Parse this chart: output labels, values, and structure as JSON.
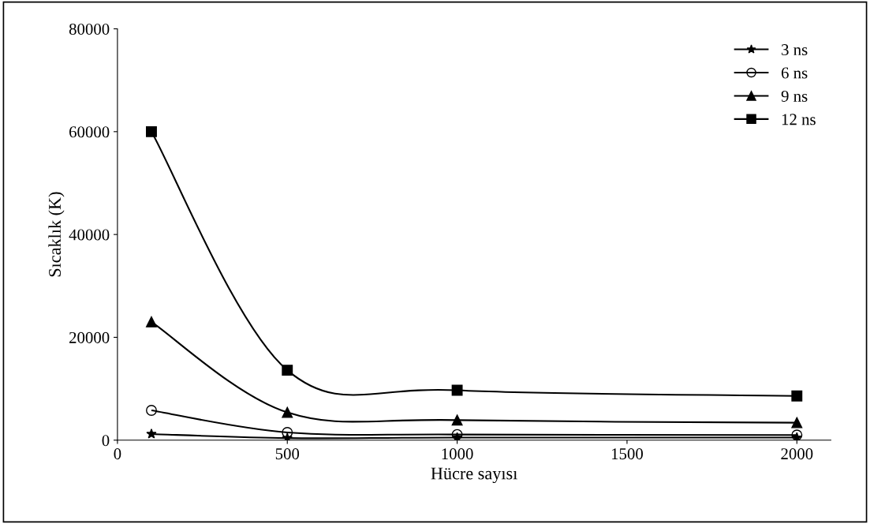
{
  "chart_data": {
    "type": "line",
    "xlabel": "Hücre sayısı",
    "ylabel": "Sıcaklık (K)",
    "x": [
      100,
      500,
      1000,
      2000
    ],
    "series": [
      {
        "name": "3 ns",
        "color": "#000000",
        "marker": "star",
        "values": [
          1200,
          400,
          500,
          500
        ]
      },
      {
        "name": "6 ns",
        "color": "#000000",
        "marker": "circle",
        "values": [
          5800,
          1500,
          1100,
          1000
        ]
      },
      {
        "name": "9 ns",
        "color": "#000000",
        "marker": "triangle",
        "values": [
          23000,
          5400,
          3900,
          3400
        ]
      },
      {
        "name": "12 ns",
        "color": "#000000",
        "marker": "square",
        "values": [
          60000,
          13600,
          9700,
          8600
        ]
      }
    ],
    "xlim": [
      0,
      2100
    ],
    "xticks": [
      0,
      500,
      1000,
      1500,
      2000
    ],
    "ylim": [
      0,
      80000
    ],
    "yticks": [
      0,
      20000,
      40000,
      60000,
      80000
    ],
    "grid": false,
    "legend": "top right",
    "line_style": "solid"
  }
}
